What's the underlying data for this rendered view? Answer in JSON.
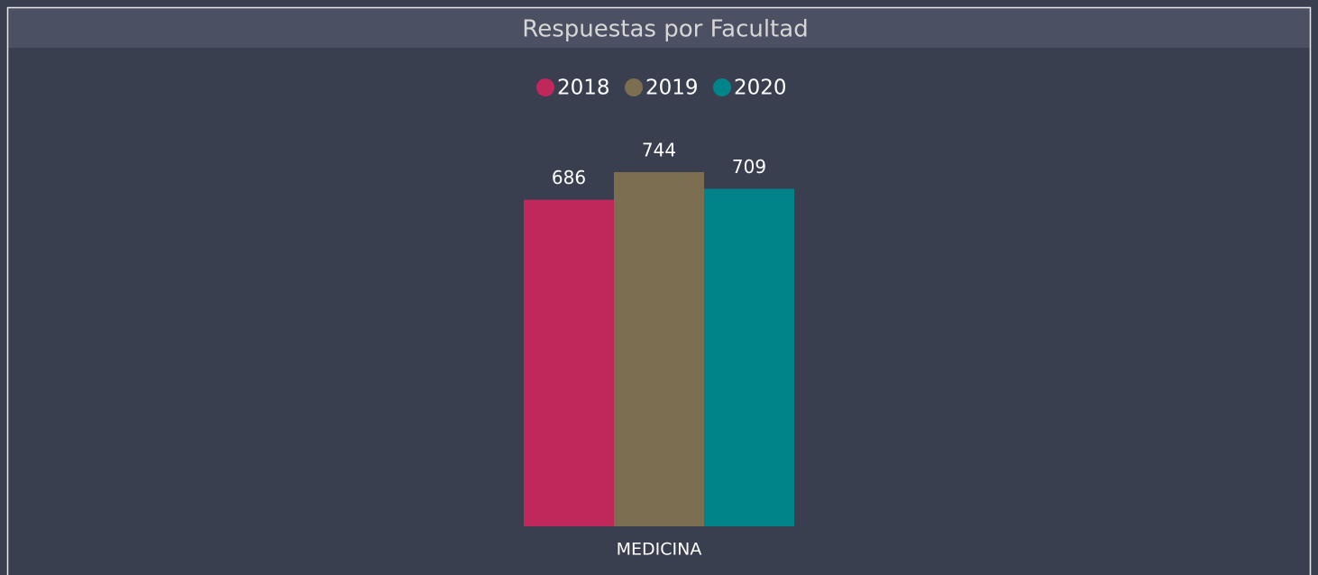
{
  "chart_data": {
    "type": "bar",
    "title": "Respuestas por Facultad",
    "categories": [
      "MEDICINA"
    ],
    "series": [
      {
        "name": "2018",
        "color": "#c0285c",
        "values": [
          686
        ]
      },
      {
        "name": "2019",
        "color": "#7c6e50",
        "values": [
          744
        ]
      },
      {
        "name": "2020",
        "color": "#00848a",
        "values": [
          709
        ]
      }
    ],
    "legend": "top",
    "grid": false
  }
}
